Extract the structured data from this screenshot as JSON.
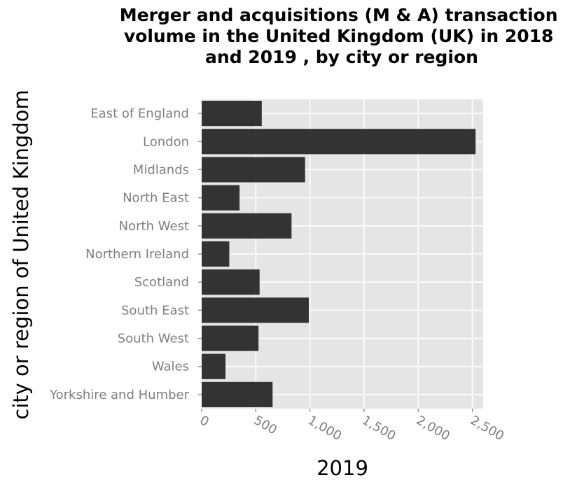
{
  "chart_data": {
    "type": "bar",
    "orientation": "horizontal",
    "title": "Merger and acquisitions (M & A) transaction volume in the United Kingdom (UK) in 2018 and 2019 , by city or region",
    "title_lines": [
      "Merger and acquisitions (M & A) transaction",
      "volume in the United Kingdom (UK) in 2018",
      "and 2019 , by city or region"
    ],
    "xlabel": "2019",
    "ylabel": "city or region of United Kingdom",
    "categories": [
      "East of England",
      "London",
      "Midlands",
      "North East",
      "North West",
      "Northern Ireland",
      "Scotland",
      "South East",
      "South West",
      "Wales",
      "Yorkshire and Humber"
    ],
    "values": [
      555,
      2530,
      955,
      350,
      830,
      255,
      535,
      990,
      525,
      220,
      655
    ],
    "xlim": [
      0,
      2600
    ],
    "xticks": [
      0,
      500,
      1000,
      1500,
      2000,
      2500
    ],
    "xtick_labels": [
      "0",
      "500",
      "1,000",
      "1,500",
      "2,000",
      "2,500"
    ],
    "grid": true,
    "legend": "none",
    "colors": {
      "bar": "#333333",
      "panel": "#e5e5e5",
      "grid": "#ffffff",
      "tick_text": "#7f7f7f"
    }
  }
}
